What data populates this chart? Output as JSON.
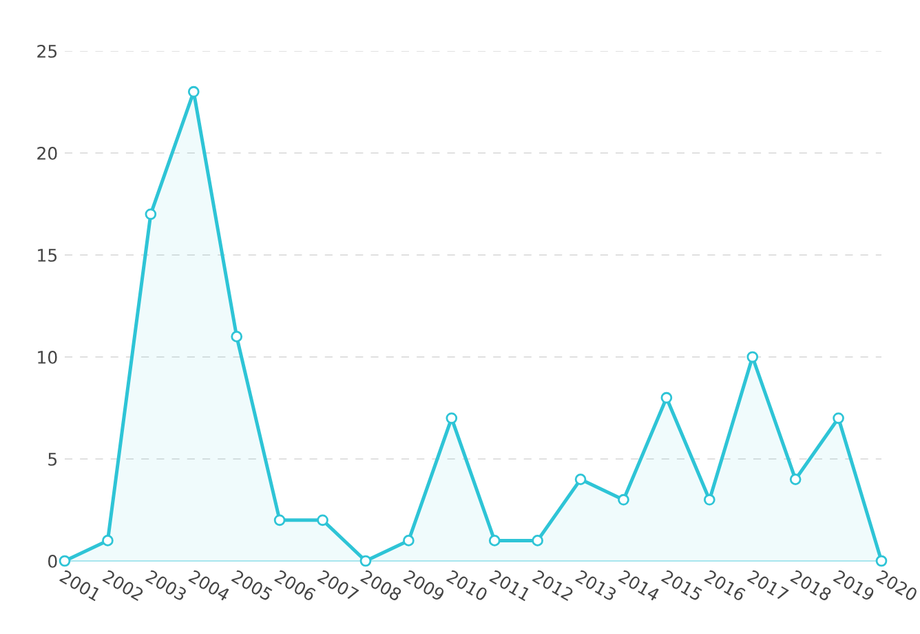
{
  "chart_data": {
    "type": "area",
    "categories": [
      "2001",
      "2002",
      "2003",
      "2004",
      "2005",
      "2006",
      "2007",
      "2008",
      "2009",
      "2010",
      "2011",
      "2012",
      "2013",
      "2014",
      "2015",
      "2016",
      "2017",
      "2018",
      "2019",
      "2020"
    ],
    "series": [
      {
        "color": "#2ec4d6",
        "values": [
          0,
          1,
          17,
          23,
          11,
          2,
          2,
          0,
          1,
          7,
          1,
          1,
          4,
          3,
          8,
          3,
          10,
          4,
          7,
          0
        ]
      }
    ],
    "ylim": [
      0,
      25
    ],
    "yticks": [
      0,
      5,
      10,
      15,
      20,
      25
    ],
    "grid": "y",
    "marker": "circle",
    "line_style": "solid"
  }
}
